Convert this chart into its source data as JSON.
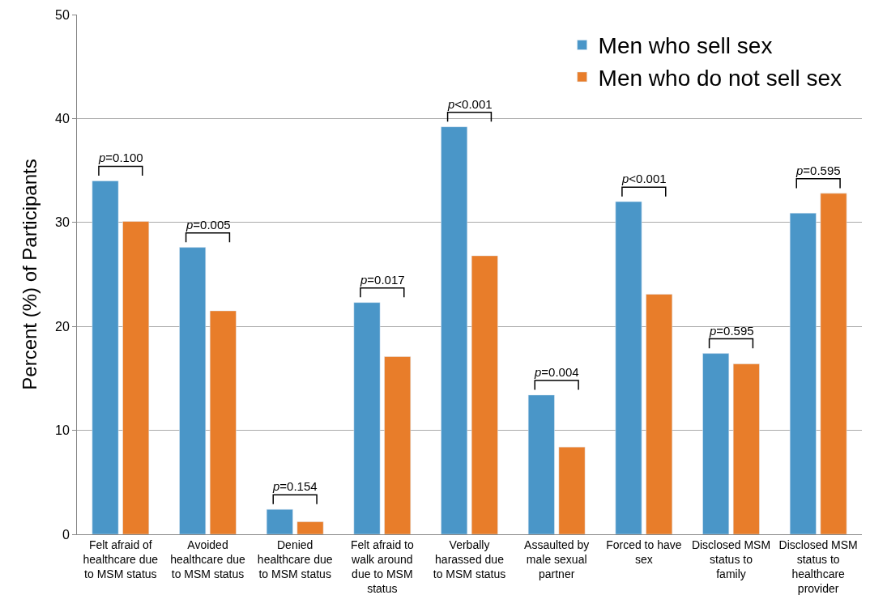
{
  "chart_data": {
    "type": "bar",
    "ylabel": "Percent (%) of Participants",
    "categories": [
      "Felt afraid of healthcare due to MSM status",
      "Avoided healthcare due to MSM status",
      "Denied healthcare due to MSM status",
      "Felt afraid to walk around due to MSM status",
      "Verbally harassed due to MSM status",
      "Assaulted by male sexual partner",
      "Forced to have sex",
      "Disclosed MSM status to family",
      "Disclosed MSM status to healthcare provider"
    ],
    "series": [
      {
        "name": "Men who sell sex",
        "color": "#4a96c8",
        "values": [
          34.0,
          27.6,
          2.4,
          22.3,
          39.2,
          13.4,
          32.0,
          17.4,
          30.9
        ]
      },
      {
        "name": "Men who do not sell sex",
        "color": "#e87d2a",
        "values": [
          30.1,
          21.5,
          1.2,
          17.1,
          26.8,
          8.4,
          23.1,
          16.4,
          32.8
        ]
      }
    ],
    "ylim": [
      0,
      50
    ],
    "yticks": [
      0,
      10,
      20,
      30,
      40,
      50
    ],
    "grid": "y",
    "legend": "top right",
    "annotations": [
      "p=0.100",
      "p=0.005",
      "p=0.154",
      "p=0.017",
      "p<0.001",
      "p=0.004",
      "p<0.001",
      "p=0.595",
      "p=0.595"
    ]
  }
}
